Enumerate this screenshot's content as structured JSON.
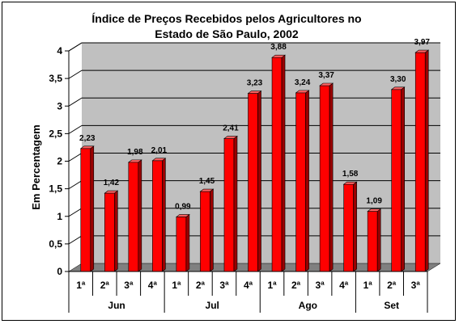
{
  "chart_data": {
    "type": "bar",
    "title_lines": [
      "Índice de Preços Recebidos pelos Agricultores no",
      "Estado de São Paulo, 2002"
    ],
    "ylabel": "Em Percentagem",
    "xlabel": "",
    "ylim": [
      0,
      4
    ],
    "yticks": [
      "0",
      "0,5",
      "1",
      "1,5",
      "2",
      "2,5",
      "3",
      "3,5",
      "4"
    ],
    "grid": true,
    "bar_color": "#ff0000",
    "groups": [
      {
        "month": "Jun",
        "weeks": [
          "1ª",
          "2ª",
          "3ª",
          "4ª"
        ]
      },
      {
        "month": "Jul",
        "weeks": [
          "1ª",
          "2ª",
          "3ª",
          "4ª"
        ]
      },
      {
        "month": "Ago",
        "weeks": [
          "1ª",
          "2ª",
          "3ª",
          "4ª"
        ]
      },
      {
        "month": "Set",
        "weeks": [
          "1ª",
          "2ª",
          "3ª"
        ]
      }
    ],
    "values": [
      2.23,
      1.42,
      1.98,
      2.01,
      0.99,
      1.45,
      2.41,
      3.23,
      3.88,
      3.24,
      3.37,
      1.58,
      1.09,
      3.3,
      3.97
    ],
    "value_labels": [
      "2,23",
      "1,42",
      "1,98",
      "2,01",
      "0,99",
      "1,45",
      "2,41",
      "3,23",
      "3,88",
      "3,24",
      "3,37",
      "1,58",
      "1,09",
      "3,30",
      "3,97"
    ]
  }
}
